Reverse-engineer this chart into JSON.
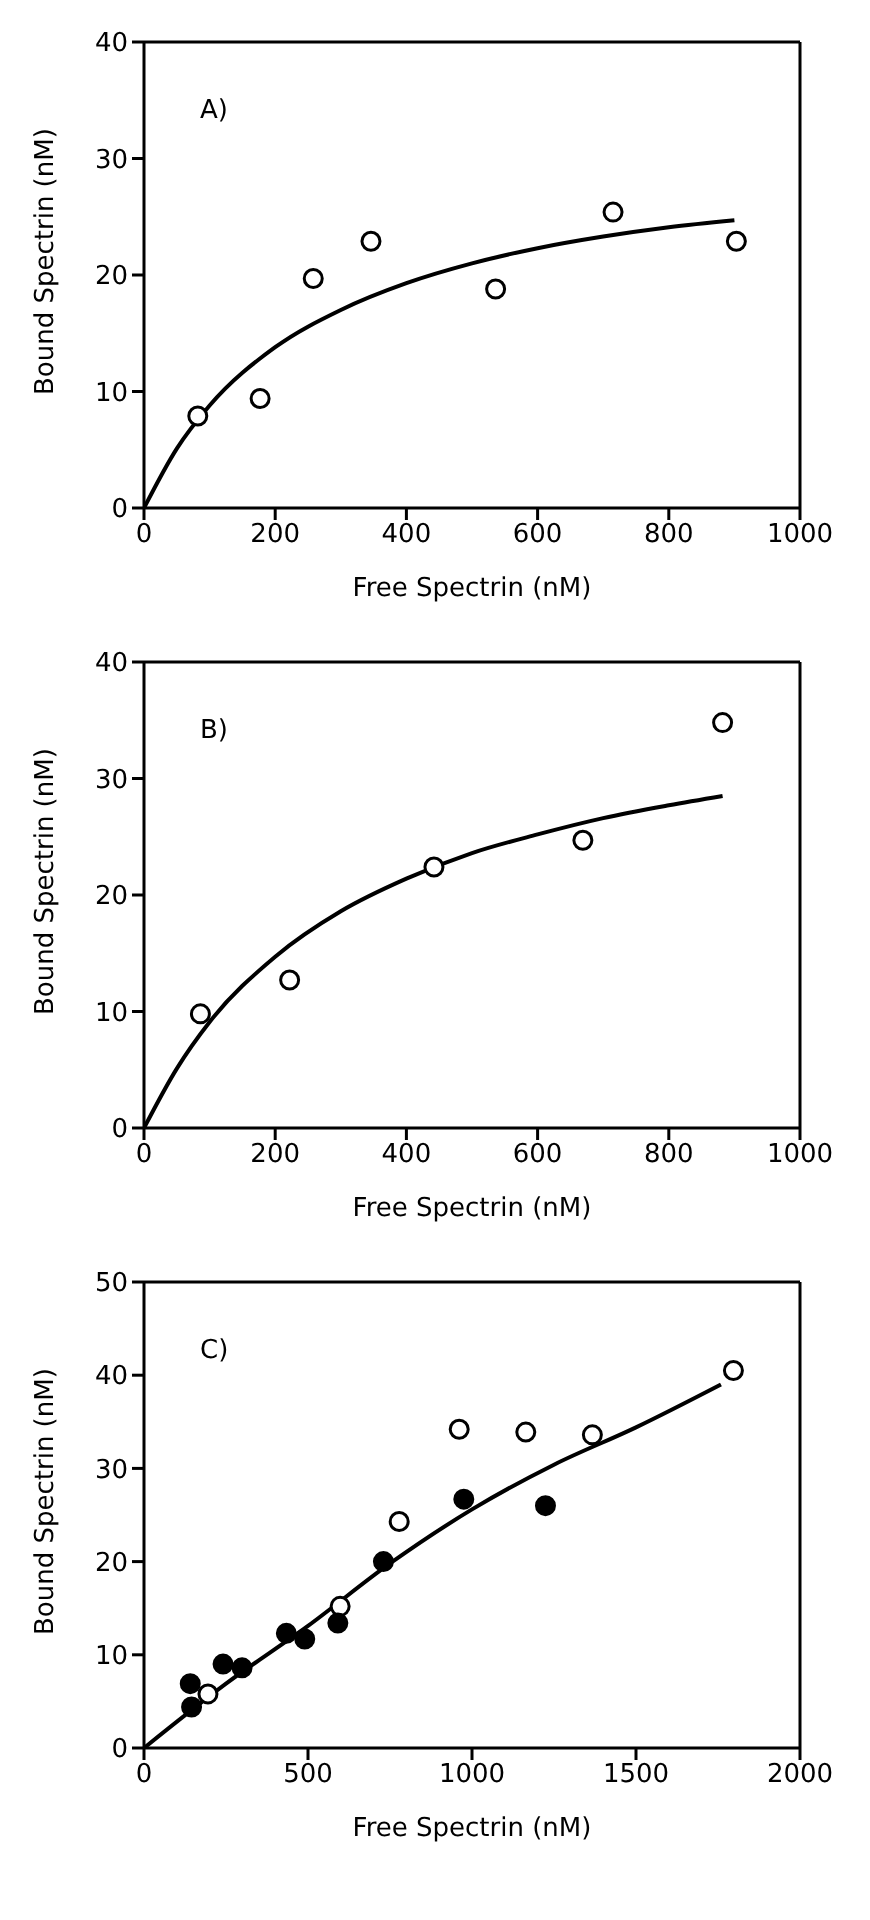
{
  "chart_data": [
    {
      "type": "scatter",
      "xlabel": "Free Spectrin (nM)",
      "ylabel": "Bound Spectrin (nM)",
      "annotations": [
        "A)"
      ],
      "xlim": [
        0,
        1000
      ],
      "xticks": [
        0,
        200,
        400,
        600,
        800,
        1000
      ],
      "ylim": [
        0,
        40
      ],
      "yticks": [
        0,
        10,
        20,
        30,
        40
      ],
      "grid": false,
      "legend": false,
      "series": [
        {
          "marker": "circle",
          "color": "#ffffff",
          "x": [
            82,
            177,
            258,
            346,
            536,
            715,
            903
          ],
          "values": [
            7.9,
            9.4,
            19.7,
            22.9,
            18.8,
            25.4,
            22.9
          ]
        },
        {
          "type": "line",
          "marker": "none",
          "line_style": "solid",
          "color": "#000000",
          "x": [
            0,
            50,
            100,
            200,
            300,
            400,
            500,
            600,
            700,
            800,
            900
          ],
          "values": [
            0,
            5.1,
            8.8,
            13.8,
            17.0,
            19.3,
            21.0,
            22.3,
            23.3,
            24.1,
            24.7
          ]
        }
      ]
    },
    {
      "type": "scatter",
      "xlabel": "Free Spectrin (nM)",
      "ylabel": "Bound Spectrin (nM)",
      "annotations": [
        "B)"
      ],
      "xlim": [
        0,
        1000
      ],
      "xticks": [
        0,
        200,
        400,
        600,
        800,
        1000
      ],
      "ylim": [
        0,
        40
      ],
      "yticks": [
        0,
        10,
        20,
        30,
        40
      ],
      "grid": false,
      "legend": false,
      "series": [
        {
          "marker": "circle",
          "color": "#ffffff",
          "x": [
            86,
            222,
            442,
            669,
            882
          ],
          "values": [
            9.8,
            12.7,
            22.4,
            24.7,
            34.8
          ]
        },
        {
          "type": "line",
          "marker": "none",
          "line_style": "solid",
          "color": "#000000",
          "x": [
            0,
            50,
            100,
            200,
            300,
            400,
            500,
            600,
            700,
            800,
            882
          ],
          "values": [
            0,
            5.1,
            9.1,
            14.7,
            18.6,
            21.4,
            23.6,
            25.2,
            26.6,
            27.7,
            28.5
          ]
        }
      ]
    },
    {
      "type": "scatter",
      "xlabel": "Free Spectrin (nM)",
      "ylabel": "Bound Spectrin (nM)",
      "annotations": [
        "C)"
      ],
      "xlim": [
        0,
        2000
      ],
      "xticks": [
        0,
        500,
        1000,
        1500,
        2000
      ],
      "ylim": [
        0,
        50
      ],
      "yticks": [
        0,
        10,
        20,
        30,
        40,
        50
      ],
      "grid": false,
      "legend": false,
      "series": [
        {
          "marker": "circle",
          "color": "#ffffff",
          "x": [
            195,
            598,
            778,
            961,
            1164,
            1367,
            1797
          ],
          "values": [
            5.8,
            15.2,
            24.3,
            34.2,
            33.9,
            33.6,
            40.5
          ]
        },
        {
          "marker": "circle",
          "color": "#000000",
          "x": [
            141,
            145,
            241,
            299,
            434,
            490,
            591,
            730,
            975,
            1224
          ],
          "values": [
            6.9,
            4.4,
            9.0,
            8.6,
            12.3,
            11.7,
            13.4,
            20.0,
            26.7,
            26.0
          ]
        },
        {
          "type": "line",
          "marker": "none",
          "line_style": "solid",
          "color": "#000000",
          "x": [
            0,
            250,
            500,
            750,
            1000,
            1250,
            1500,
            1759
          ],
          "values": [
            0,
            6.9,
            13.1,
            19.8,
            25.6,
            30.4,
            34.4,
            39.0
          ]
        }
      ]
    }
  ]
}
